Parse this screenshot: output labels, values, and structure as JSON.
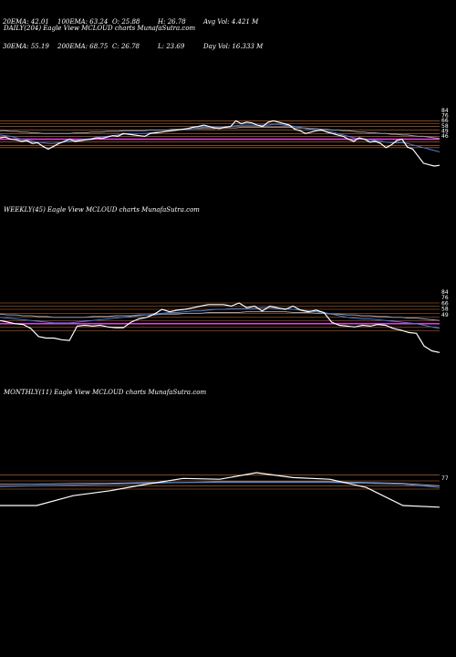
{
  "header": {
    "row1": [
      "20EMA: 42.01",
      "100EMA: 63.24",
      "O: 25.88",
      "H: 26.78",
      "Avg Vol: 4.421 M"
    ],
    "row2": [
      "30EMA: 55.19",
      "200EMA: 68.75",
      "C: 26.78",
      "L: 23.69",
      "Day Vol: 16.333 M"
    ]
  },
  "panels": {
    "daily_title": "DAILY(204) Eagle  View  MCLOUD charts MunafaSutra.com",
    "weekly_title": "WEEKLY(45) Eagle  View  MCLOUD charts MunafaSutra.com",
    "monthly_title": "MONTHLY(11) Eagle  View  MCLOUD charts MunafaSutra.com"
  },
  "colors": {
    "price": "#ffffff",
    "ema_short": "#4a7cd8",
    "ema_long": "#9aa0b0",
    "level_line": "#c8743a",
    "magenta_line": "#e040e0",
    "background": "#000000"
  },
  "chart_data": [
    {
      "type": "line",
      "title": "DAILY(204) Eagle  View  MCLOUD charts MunafaSutra.com",
      "ylim": [
        20,
        100
      ],
      "tick_labels": [
        "84",
        "76",
        "66",
        "58",
        "49",
        "46"
      ],
      "levels": [
        84,
        80,
        76,
        71,
        66,
        62,
        58,
        54,
        49,
        46
      ],
      "magenta_level": 58,
      "series": [
        {
          "role": "price",
          "values": [
            60,
            61,
            58,
            57,
            55,
            56,
            52,
            53,
            48,
            44,
            48,
            52,
            55,
            58,
            55,
            56,
            57,
            58,
            60,
            59,
            61,
            63,
            62,
            66,
            65,
            64,
            63,
            62,
            66,
            67,
            68,
            69,
            70,
            71,
            72,
            73,
            75,
            76,
            78,
            76,
            74,
            73,
            75,
            76,
            84,
            80,
            82,
            81,
            78,
            76,
            82,
            84,
            82,
            80,
            78,
            72,
            70,
            66,
            68,
            70,
            71,
            68,
            66,
            64,
            62,
            58,
            55,
            60,
            58,
            54,
            55,
            52,
            46,
            50,
            56,
            58,
            47,
            44,
            34,
            24,
            22,
            20,
            21
          ]
        },
        {
          "role": "ema_short",
          "values": [
            64,
            63,
            62,
            60,
            58,
            57,
            55,
            54,
            53,
            52,
            52,
            53,
            54,
            55,
            56,
            57,
            58,
            59,
            60,
            61,
            62,
            63,
            64,
            65,
            66,
            66,
            66,
            66,
            67,
            68,
            68,
            69,
            70,
            71,
            72,
            72,
            73,
            74,
            75,
            75,
            75,
            75,
            75,
            76,
            77,
            78,
            78,
            78,
            78,
            78,
            78,
            79,
            79,
            78,
            77,
            76,
            75,
            73,
            72,
            71,
            70,
            69,
            68,
            66,
            64,
            62,
            60,
            59,
            58,
            57,
            56,
            55,
            54,
            53,
            53,
            53,
            52,
            50,
            48,
            46,
            44,
            42,
            40
          ]
        },
        {
          "role": "ema_long",
          "values": [
            70,
            70,
            69,
            69,
            68,
            68,
            67,
            67,
            66,
            66,
            66,
            66,
            66,
            66,
            67,
            67,
            67,
            68,
            68,
            68,
            69,
            69,
            69,
            70,
            70,
            70,
            70,
            70,
            71,
            71,
            71,
            71,
            72,
            72,
            72,
            72,
            73,
            73,
            73,
            73,
            73,
            74,
            74,
            74,
            74,
            75,
            75,
            75,
            75,
            75,
            75,
            75,
            75,
            75,
            75,
            74,
            74,
            74,
            73,
            73,
            72,
            72,
            71,
            71,
            70,
            70,
            69,
            68,
            68,
            67,
            67,
            66,
            66,
            65,
            65,
            64,
            64,
            63,
            62,
            62,
            61,
            60,
            59
          ]
        }
      ]
    },
    {
      "type": "line",
      "title": "WEEKLY(45) Eagle  View  MCLOUD charts MunafaSutra.com",
      "ylim": [
        20,
        100
      ],
      "tick_labels": [
        "84",
        "76",
        "66",
        "58",
        "49"
      ],
      "levels": [
        84,
        80,
        76,
        71,
        66,
        62,
        58,
        54,
        49
      ],
      "magenta_level": 58,
      "series": [
        {
          "role": "price",
          "values": [
            62,
            60,
            58,
            57,
            52,
            42,
            40,
            40,
            38,
            37,
            55,
            56,
            55,
            56,
            54,
            53,
            53,
            60,
            64,
            66,
            70,
            76,
            73,
            75,
            76,
            78,
            80,
            82,
            82,
            82,
            80,
            84,
            78,
            80,
            74,
            80,
            78,
            76,
            80,
            75,
            73,
            75,
            72,
            60,
            56,
            55,
            54,
            56,
            55,
            57,
            56,
            52,
            50,
            47,
            46,
            30,
            24,
            22
          ]
        },
        {
          "role": "ema_short",
          "values": [
            66,
            65,
            64,
            63,
            62,
            61,
            60,
            59,
            59,
            59,
            60,
            61,
            62,
            63,
            64,
            65,
            66,
            67,
            68,
            69,
            70,
            71,
            72,
            72,
            73,
            74,
            74,
            75,
            76,
            76,
            77,
            77,
            77,
            77,
            78,
            78,
            77,
            77,
            76,
            75,
            74,
            73,
            72,
            70,
            68,
            66,
            65,
            64,
            64,
            63,
            62,
            61,
            60,
            59,
            58,
            56,
            54,
            52
          ]
        },
        {
          "role": "ema_long",
          "values": [
            70,
            69,
            69,
            68,
            68,
            67,
            67,
            66,
            66,
            66,
            66,
            66,
            67,
            67,
            67,
            68,
            68,
            68,
            69,
            69,
            69,
            70,
            70,
            70,
            71,
            71,
            71,
            72,
            72,
            72,
            72,
            72,
            73,
            73,
            73,
            73,
            73,
            73,
            72,
            72,
            72,
            71,
            71,
            70,
            70,
            69,
            69,
            68,
            68,
            67,
            67,
            66,
            66,
            65,
            65,
            64,
            63,
            62
          ]
        }
      ]
    },
    {
      "type": "line",
      "title": "MONTHLY(11) Eagle  View  MCLOUD charts MunafaSutra.com",
      "ylim": [
        0,
        100
      ],
      "tick_labels": [
        "77"
      ],
      "levels": [
        77,
        70,
        64,
        60
      ],
      "series": [
        {
          "role": "price",
          "values": [
            40,
            40,
            52,
            58,
            66,
            73,
            72,
            80,
            74,
            72,
            62,
            40,
            38
          ]
        },
        {
          "role": "ema_short",
          "values": [
            63,
            64,
            65,
            66,
            67,
            68,
            68,
            68,
            68,
            68,
            67,
            66,
            62
          ]
        },
        {
          "role": "ema_long",
          "values": [
            66,
            66,
            67,
            67,
            68,
            68,
            69,
            69,
            69,
            69,
            68,
            67,
            64
          ]
        }
      ]
    }
  ]
}
